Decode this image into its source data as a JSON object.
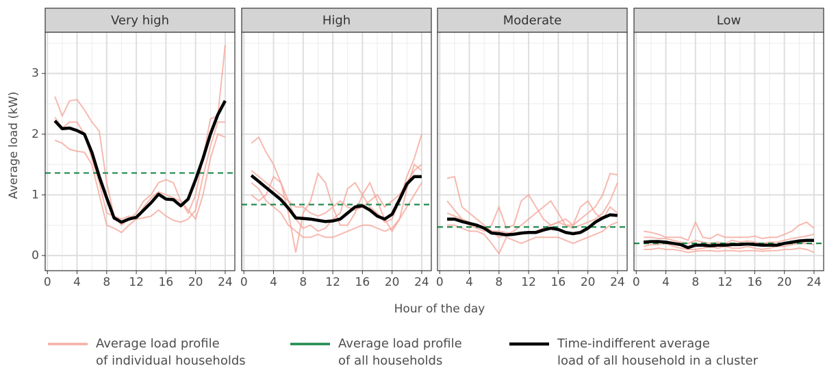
{
  "chart_data": [
    {
      "type": "line",
      "title": "Very high",
      "x": [
        1,
        2,
        3,
        4,
        5,
        6,
        7,
        8,
        9,
        10,
        11,
        12,
        13,
        14,
        15,
        16,
        17,
        18,
        19,
        20,
        21,
        22,
        23,
        24
      ],
      "households": [
        [
          2.62,
          2.3,
          2.55,
          2.57,
          2.4,
          2.2,
          2.05,
          1.2,
          0.65,
          0.5,
          0.6,
          0.7,
          0.9,
          1.0,
          1.2,
          1.25,
          1.2,
          0.9,
          0.7,
          1.0,
          1.6,
          2.25,
          2.3,
          3.47
        ],
        [
          1.9,
          1.85,
          1.75,
          1.72,
          1.7,
          1.5,
          1.0,
          0.5,
          0.45,
          0.38,
          0.5,
          0.6,
          0.62,
          0.65,
          0.75,
          0.65,
          0.58,
          0.55,
          0.6,
          0.75,
          1.3,
          1.8,
          2.2,
          2.2
        ],
        [
          2.28,
          2.1,
          2.2,
          2.2,
          2.0,
          1.6,
          1.2,
          0.7,
          0.65,
          0.6,
          0.65,
          0.6,
          0.8,
          0.95,
          1.05,
          1.0,
          0.95,
          0.9,
          0.75,
          0.6,
          1.0,
          1.6,
          2.0,
          1.95
        ]
      ],
      "cluster_average": [
        2.22,
        2.09,
        2.1,
        2.06,
        2.0,
        1.7,
        1.3,
        0.95,
        0.62,
        0.55,
        0.6,
        0.63,
        0.75,
        0.87,
        1.01,
        0.93,
        0.92,
        0.82,
        0.93,
        1.25,
        1.6,
        2.0,
        2.32,
        2.55
      ],
      "overall_average": 1.36,
      "xlim": [
        -0.3,
        25.3
      ],
      "xticks": [
        0,
        4,
        8,
        12,
        16,
        20,
        24
      ],
      "ylim": [
        -0.25,
        3.68
      ],
      "yticks": [
        0,
        1,
        2,
        3
      ]
    },
    {
      "type": "line",
      "title": "High",
      "x": [
        1,
        2,
        3,
        4,
        5,
        6,
        7,
        8,
        9,
        10,
        11,
        12,
        13,
        14,
        15,
        16,
        17,
        18,
        19,
        20,
        21,
        22,
        23,
        24
      ],
      "households": [
        [
          1.85,
          1.95,
          1.7,
          1.5,
          1.2,
          0.9,
          0.6,
          0.45,
          0.5,
          0.4,
          0.45,
          0.6,
          0.7,
          1.1,
          1.2,
          1.0,
          0.8,
          0.7,
          0.55,
          0.6,
          0.9,
          1.3,
          1.6,
          2.0
        ],
        [
          1.0,
          0.9,
          1.0,
          1.3,
          1.2,
          0.7,
          0.05,
          0.7,
          0.9,
          1.35,
          1.2,
          0.8,
          0.5,
          0.5,
          0.7,
          1.0,
          1.2,
          0.9,
          0.6,
          0.4,
          0.6,
          1.1,
          1.5,
          1.4
        ],
        [
          1.2,
          1.1,
          0.9,
          0.8,
          0.7,
          0.5,
          0.4,
          0.3,
          0.3,
          0.35,
          0.3,
          0.3,
          0.35,
          0.4,
          0.45,
          0.5,
          0.5,
          0.45,
          0.4,
          0.45,
          0.6,
          0.8,
          1.0,
          1.2
        ],
        [
          1.4,
          1.3,
          1.2,
          1.1,
          1.0,
          0.9,
          0.8,
          0.8,
          0.7,
          0.65,
          0.7,
          0.8,
          0.9,
          0.8,
          0.75,
          0.8,
          0.9,
          1.0,
          0.8,
          0.9,
          1.0,
          1.2,
          1.4,
          1.5
        ]
      ],
      "cluster_average": [
        1.32,
        1.22,
        1.12,
        1.02,
        0.92,
        0.78,
        0.62,
        0.61,
        0.6,
        0.58,
        0.56,
        0.57,
        0.6,
        0.7,
        0.8,
        0.82,
        0.75,
        0.65,
        0.6,
        0.68,
        0.92,
        1.18,
        1.3,
        1.3
      ],
      "overall_average": 0.84,
      "xlim": [
        -0.3,
        25.3
      ],
      "xticks": [
        0,
        4,
        8,
        12,
        16,
        20,
        24
      ],
      "ylim": [
        -0.25,
        3.68
      ],
      "yticks": [
        0,
        1,
        2,
        3
      ]
    },
    {
      "type": "line",
      "title": "Moderate",
      "x": [
        1,
        2,
        3,
        4,
        5,
        6,
        7,
        8,
        9,
        10,
        11,
        12,
        13,
        14,
        15,
        16,
        17,
        18,
        19,
        20,
        21,
        22,
        23,
        24
      ],
      "households": [
        [
          1.27,
          1.3,
          0.8,
          0.7,
          0.6,
          0.5,
          0.4,
          0.3,
          0.35,
          0.4,
          0.5,
          0.6,
          0.7,
          0.8,
          0.9,
          0.7,
          0.5,
          0.5,
          0.6,
          0.7,
          0.8,
          1.0,
          1.35,
          1.33
        ],
        [
          0.5,
          0.5,
          0.45,
          0.4,
          0.4,
          0.35,
          0.2,
          0.03,
          0.3,
          0.25,
          0.2,
          0.25,
          0.3,
          0.3,
          0.3,
          0.3,
          0.25,
          0.2,
          0.25,
          0.3,
          0.35,
          0.4,
          0.5,
          0.55
        ],
        [
          0.9,
          0.75,
          0.6,
          0.5,
          0.45,
          0.4,
          0.5,
          0.8,
          0.45,
          0.5,
          0.9,
          1.0,
          0.8,
          0.6,
          0.5,
          0.55,
          0.6,
          0.5,
          0.8,
          0.9,
          0.7,
          0.6,
          0.8,
          0.7
        ],
        [
          0.7,
          0.65,
          0.6,
          0.55,
          0.5,
          0.45,
          0.4,
          0.4,
          0.38,
          0.35,
          0.35,
          0.38,
          0.4,
          0.45,
          0.5,
          0.55,
          0.5,
          0.45,
          0.5,
          0.55,
          0.6,
          0.7,
          0.9,
          1.2
        ]
      ],
      "cluster_average": [
        0.6,
        0.6,
        0.56,
        0.53,
        0.5,
        0.45,
        0.37,
        0.36,
        0.34,
        0.35,
        0.37,
        0.38,
        0.38,
        0.42,
        0.45,
        0.43,
        0.38,
        0.36,
        0.38,
        0.45,
        0.55,
        0.62,
        0.67,
        0.66
      ],
      "overall_average": 0.47,
      "xlim": [
        -0.3,
        25.3
      ],
      "xticks": [
        0,
        4,
        8,
        12,
        16,
        20,
        24
      ],
      "ylim": [
        -0.25,
        3.68
      ],
      "yticks": [
        0,
        1,
        2,
        3
      ]
    },
    {
      "type": "line",
      "title": "Low",
      "x": [
        1,
        2,
        3,
        4,
        5,
        6,
        7,
        8,
        9,
        10,
        11,
        12,
        13,
        14,
        15,
        16,
        17,
        18,
        19,
        20,
        21,
        22,
        23,
        24
      ],
      "households": [
        [
          0.4,
          0.38,
          0.35,
          0.3,
          0.3,
          0.3,
          0.25,
          0.55,
          0.3,
          0.28,
          0.35,
          0.3,
          0.3,
          0.3,
          0.3,
          0.32,
          0.28,
          0.3,
          0.3,
          0.35,
          0.4,
          0.5,
          0.55,
          0.45
        ],
        [
          0.1,
          0.1,
          0.12,
          0.1,
          0.1,
          0.08,
          0.05,
          0.07,
          0.08,
          0.08,
          0.07,
          0.08,
          0.08,
          0.07,
          0.08,
          0.08,
          0.07,
          0.08,
          0.08,
          0.1,
          0.1,
          0.12,
          0.1,
          0.05
        ],
        [
          0.3,
          0.3,
          0.28,
          0.28,
          0.25,
          0.22,
          0.2,
          0.25,
          0.22,
          0.2,
          0.22,
          0.2,
          0.25,
          0.22,
          0.24,
          0.22,
          0.2,
          0.22,
          0.22,
          0.25,
          0.28,
          0.3,
          0.32,
          0.35
        ],
        [
          0.15,
          0.18,
          0.18,
          0.2,
          0.15,
          0.12,
          0.1,
          0.1,
          0.12,
          0.15,
          0.12,
          0.15,
          0.12,
          0.12,
          0.15,
          0.12,
          0.1,
          0.12,
          0.15,
          0.15,
          0.18,
          0.2,
          0.2,
          0.18
        ]
      ],
      "cluster_average": [
        0.22,
        0.23,
        0.23,
        0.22,
        0.2,
        0.18,
        0.13,
        0.17,
        0.17,
        0.16,
        0.17,
        0.17,
        0.18,
        0.18,
        0.19,
        0.18,
        0.17,
        0.17,
        0.17,
        0.2,
        0.22,
        0.24,
        0.25,
        0.25
      ],
      "overall_average": 0.2,
      "xlim": [
        -0.3,
        25.3
      ],
      "xticks": [
        0,
        4,
        8,
        12,
        16,
        20,
        24
      ],
      "ylim": [
        -0.25,
        3.68
      ],
      "yticks": [
        0,
        1,
        2,
        3
      ]
    }
  ],
  "y_label": "Average load (kW)",
  "x_label": "Hour of the day",
  "legend": [
    {
      "label": [
        "Average load profile",
        "of individual households"
      ],
      "color": "#f4a194"
    },
    {
      "label": [
        "Average load profile",
        "of all households"
      ],
      "color": "#1e8a4c"
    },
    {
      "label": [
        "Time-indifferent average",
        "load of all household in a cluster"
      ],
      "color": "#000000"
    }
  ]
}
